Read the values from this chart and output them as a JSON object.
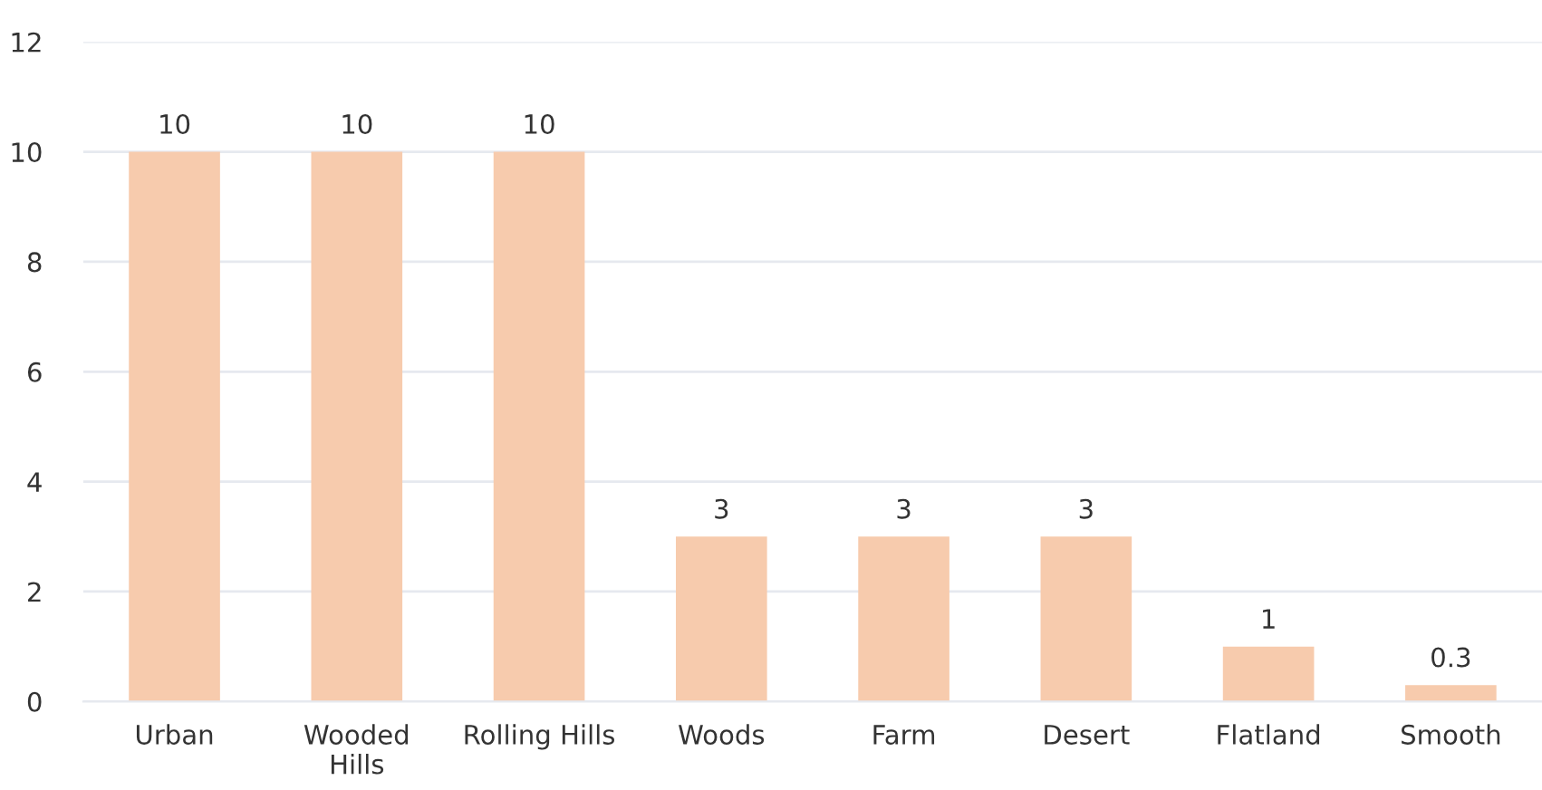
{
  "chart_data": {
    "type": "bar",
    "categories": [
      "Urban",
      "Wooded\nHills",
      "Rolling Hills",
      "Woods",
      "Farm",
      "Desert",
      "Flatland",
      "Smooth"
    ],
    "values": [
      10,
      10,
      10,
      3,
      3,
      3,
      1,
      0.3
    ],
    "color": "#f7cbad",
    "ylim": [
      0,
      12
    ],
    "yticks": [
      0,
      2,
      4,
      6,
      8,
      10,
      12
    ],
    "grid": "y",
    "data_labels": true,
    "legend": false
  }
}
